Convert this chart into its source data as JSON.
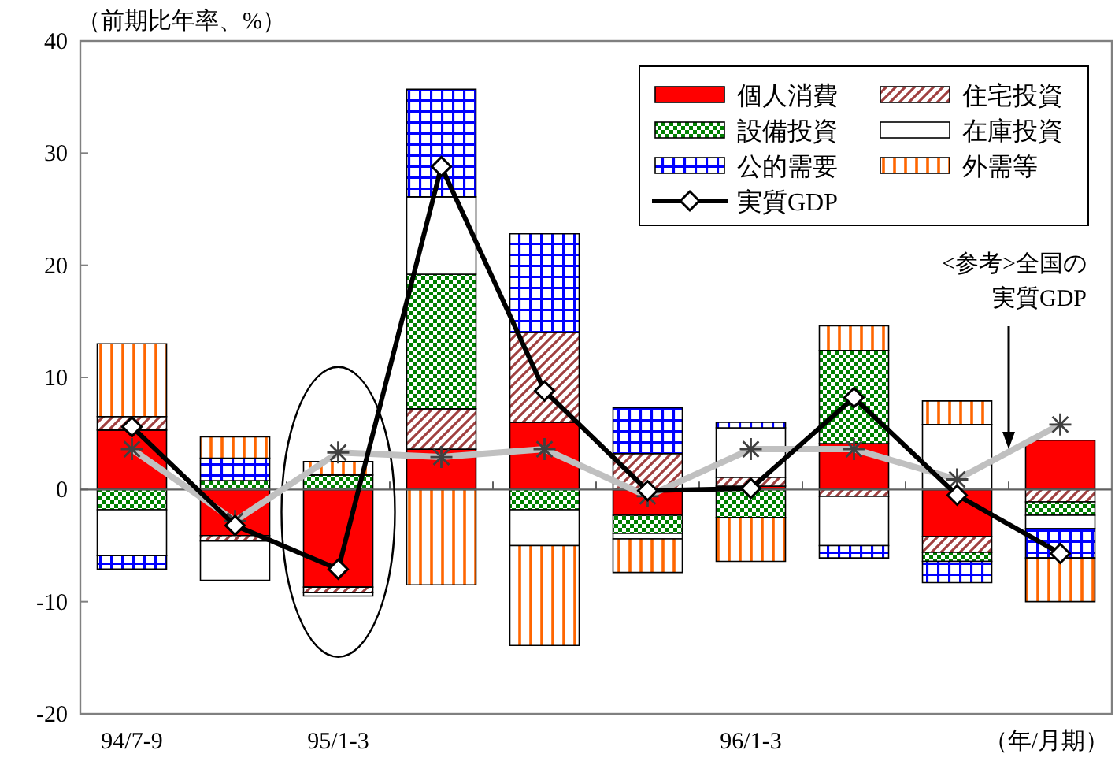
{
  "chart_data": {
    "type": "bar",
    "stacked": true,
    "xlabel": "（年/月期）",
    "ylabel": "（前期比年率、%）",
    "categories": [
      "94/7-9",
      null,
      "95/1-3",
      null,
      null,
      null,
      "96/1-3",
      null,
      null,
      null
    ],
    "ylim": [
      -20,
      40
    ],
    "yticks": [
      -20,
      -10,
      0,
      10,
      20,
      30,
      40
    ],
    "legend": "top right",
    "series": [
      {
        "name": "個人消費",
        "color": "#ff0000",
        "values": [
          5.3,
          -4.1,
          -8.7,
          3.6,
          6.0,
          -2.3,
          0.3,
          4.1,
          -4.2,
          4.4
        ]
      },
      {
        "name": "住宅投資",
        "color": "#a04040",
        "values": [
          1.2,
          -0.5,
          -0.5,
          3.6,
          8.0,
          3.2,
          0.8,
          -0.6,
          -1.4,
          -1.1
        ]
      },
      {
        "name": "設備投資",
        "color": "#008000",
        "values": [
          -1.8,
          0.8,
          1.3,
          12.0,
          -1.8,
          -1.6,
          -2.5,
          8.3,
          -0.8,
          -1.2
        ]
      },
      {
        "name": "在庫投資",
        "color": "#ffffff",
        "values": [
          -4.1,
          -3.5,
          -0.3,
          6.9,
          -3.2,
          -0.5,
          4.4,
          -4.4,
          5.8,
          -1.2
        ]
      },
      {
        "name": "公的需要",
        "color": "#0000ff",
        "values": [
          -1.2,
          2.0,
          null,
          9.6,
          8.8,
          4.1,
          0.5,
          -1.1,
          -1.9,
          -2.6
        ]
      },
      {
        "name": "外需等",
        "color": "#ff6600",
        "values": [
          6.5,
          1.9,
          1.2,
          -8.5,
          -8.9,
          -3.0,
          -3.9,
          2.2,
          2.1,
          -3.9
        ]
      },
      {
        "name": "実質GDP",
        "type": "line",
        "color": "#000000",
        "marker": "diamond",
        "values": [
          5.6,
          -3.2,
          -7.1,
          28.8,
          8.8,
          -0.1,
          0.1,
          8.2,
          -0.5,
          -5.7
        ]
      },
      {
        "type": "line",
        "color": "#c0c0c0",
        "marker": "cross",
        "values": [
          3.6,
          -2.8,
          3.3,
          2.9,
          3.6,
          -0.6,
          3.6,
          3.6,
          0.9,
          5.8
        ]
      }
    ],
    "ref_lines": [
      {
        "axis": "y",
        "value": 0,
        "color": "#606060"
      }
    ],
    "annotations": [
      "<参考>全国の",
      "実質GDP"
    ]
  }
}
